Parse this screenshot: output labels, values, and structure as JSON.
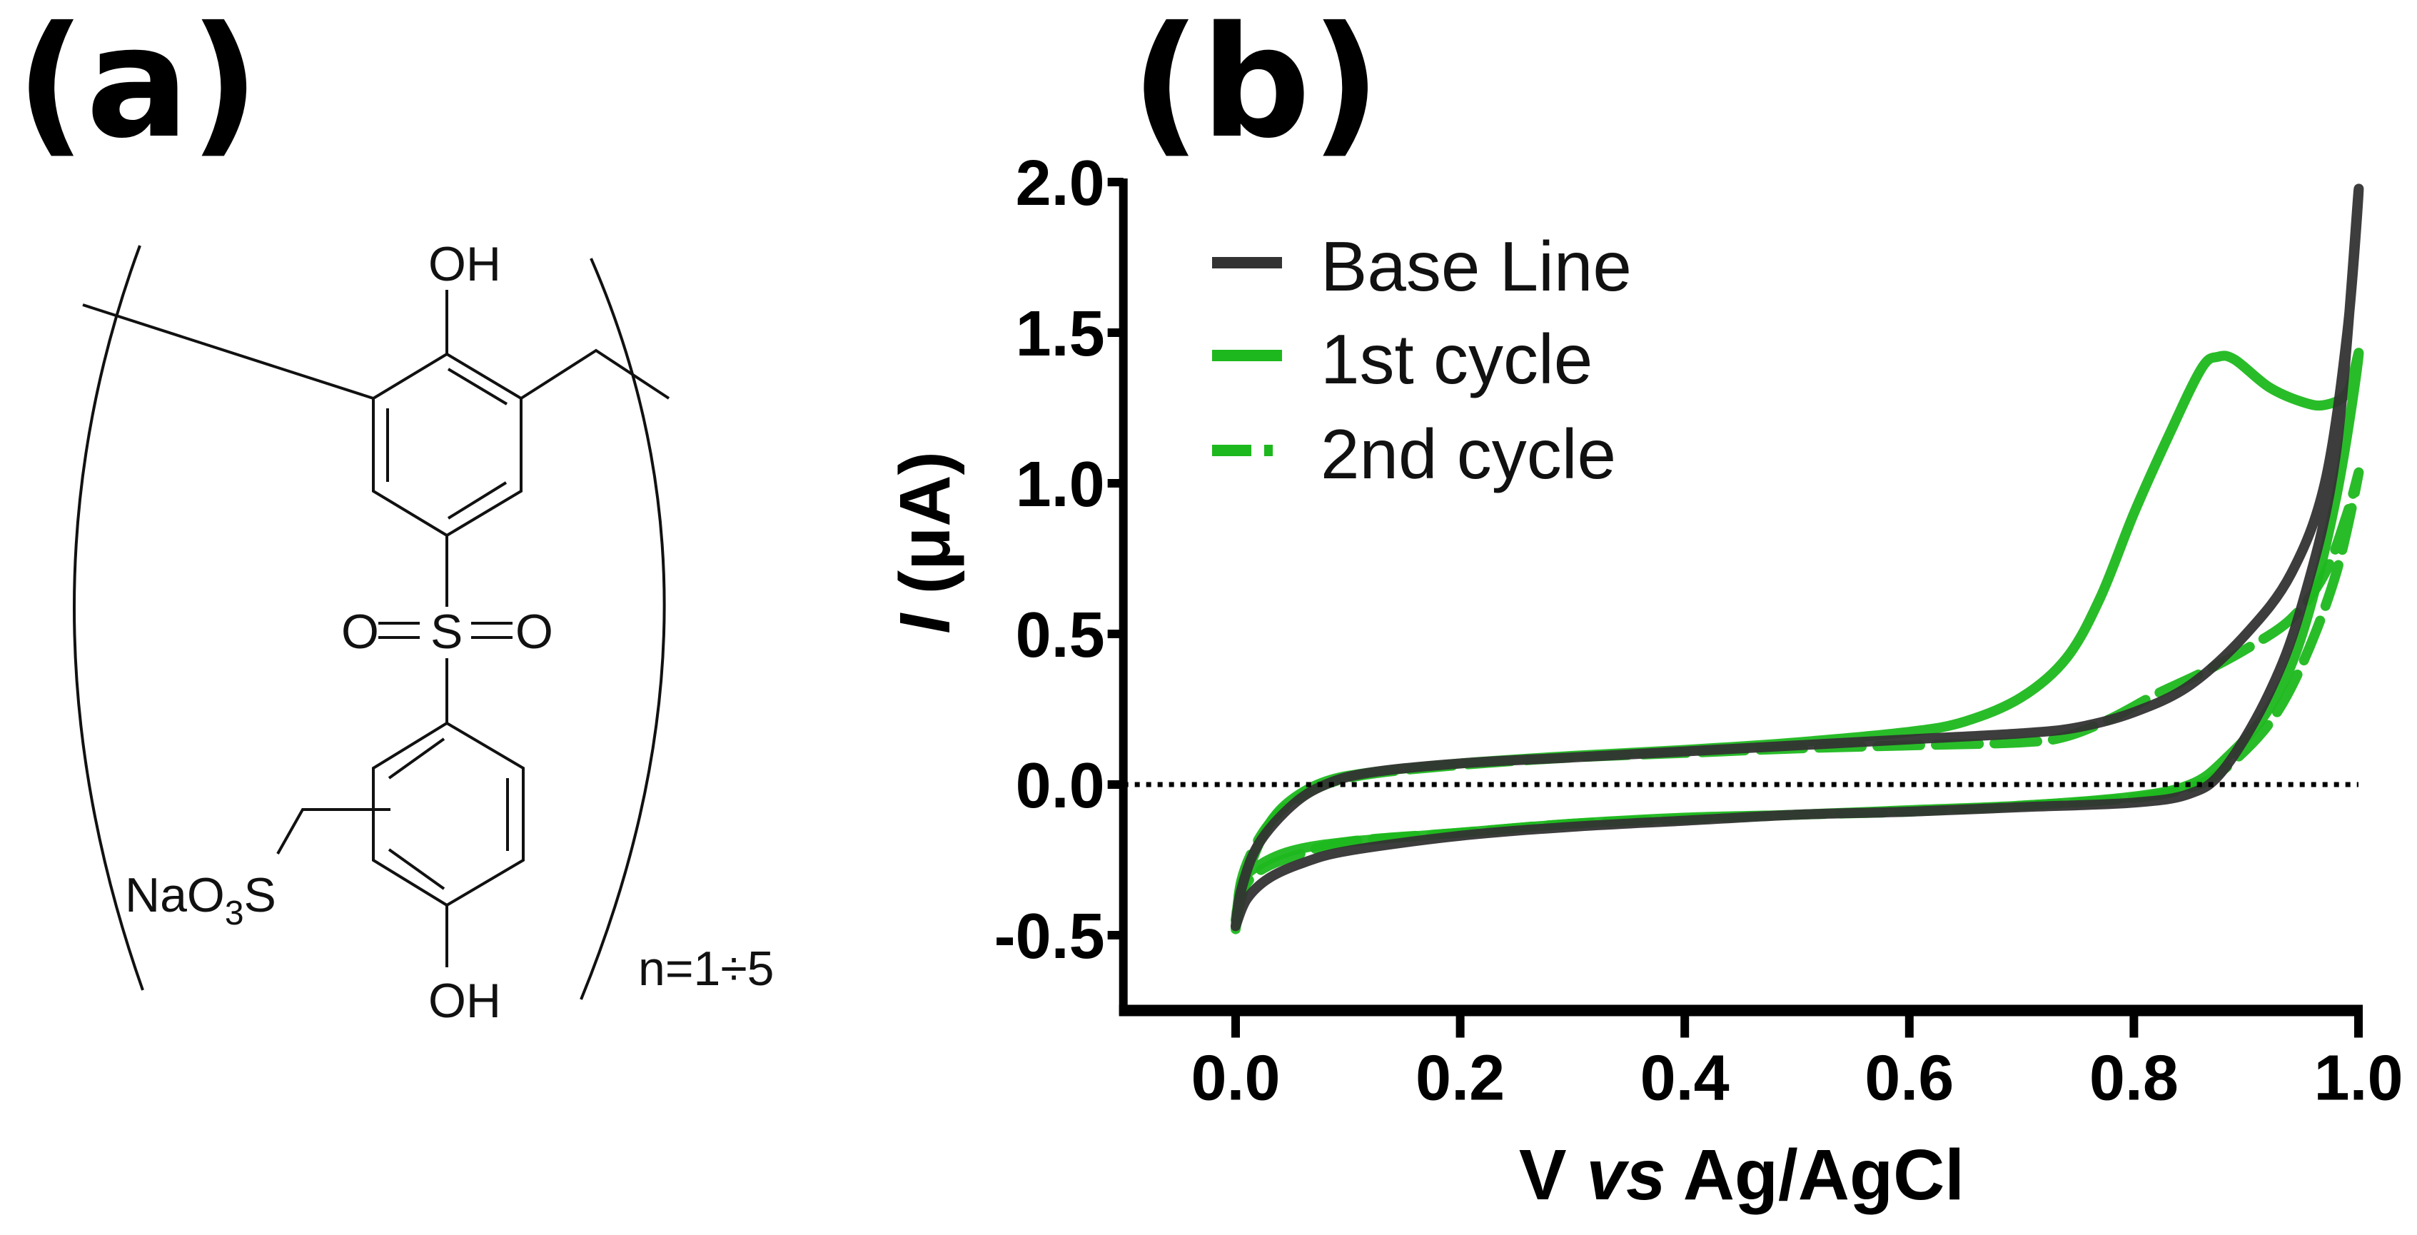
{
  "panel_a": {
    "label": "(a)",
    "structure": {
      "oh_top": "OH",
      "oh_bottom": "OH",
      "sulfonyl_o_left": "O",
      "sulfonyl_s": "S",
      "sulfonyl_o_right": "O",
      "sulfonate": {
        "prefix": "NaO",
        "subscript": "3",
        "suffix": "S"
      },
      "repeat_label": "n=1÷5"
    }
  },
  "panel_b": {
    "label": "(b)"
  },
  "chart_data": {
    "type": "line",
    "title": "",
    "xlabel": {
      "v": "V ",
      "vs": "vs",
      "ref": " Ag/AgCl"
    },
    "ylabel": {
      "i": "I",
      "unit": " (μA)"
    },
    "xlim": [
      -0.1,
      1.0
    ],
    "ylim": [
      -0.75,
      2.0
    ],
    "xticks": [
      "0.0",
      "0.2",
      "0.4",
      "0.6",
      "0.8",
      "1.0"
    ],
    "xtick_values": [
      0,
      0.2,
      0.4,
      0.6,
      0.8,
      1.0
    ],
    "yticks": [
      "2.0",
      "1.5",
      "1.0",
      "0.5",
      "0.0",
      "-0.5"
    ],
    "ytick_values": [
      2.0,
      1.5,
      1.0,
      0.5,
      0.0,
      -0.5
    ],
    "reference_line": {
      "y": 0,
      "style": "dotted"
    },
    "legend_position": "top-left",
    "series": [
      {
        "name": "Base Line",
        "color": "#333333",
        "dash": "solid",
        "points": [
          [
            0,
            -0.47
          ],
          [
            0.01,
            -0.38
          ],
          [
            0.03,
            -0.31
          ],
          [
            0.06,
            -0.26
          ],
          [
            0.1,
            -0.22
          ],
          [
            0.2,
            -0.17
          ],
          [
            0.3,
            -0.14
          ],
          [
            0.4,
            -0.12
          ],
          [
            0.5,
            -0.1
          ],
          [
            0.6,
            -0.09
          ],
          [
            0.7,
            -0.075
          ],
          [
            0.8,
            -0.06
          ],
          [
            0.85,
            -0.03
          ],
          [
            0.88,
            0.05
          ],
          [
            0.92,
            0.3
          ],
          [
            0.95,
            0.6
          ],
          [
            0.98,
            1.1
          ],
          [
            1.0,
            1.97
          ],
          [
            0.99,
            1.5
          ],
          [
            0.97,
            1.0
          ],
          [
            0.94,
            0.7
          ],
          [
            0.9,
            0.5
          ],
          [
            0.85,
            0.33
          ],
          [
            0.8,
            0.24
          ],
          [
            0.75,
            0.19
          ],
          [
            0.7,
            0.17
          ],
          [
            0.6,
            0.15
          ],
          [
            0.5,
            0.13
          ],
          [
            0.4,
            0.11
          ],
          [
            0.3,
            0.09
          ],
          [
            0.2,
            0.07
          ],
          [
            0.12,
            0.04
          ],
          [
            0.08,
            0.0
          ],
          [
            0.05,
            -0.07
          ],
          [
            0.02,
            -0.2
          ],
          [
            0.005,
            -0.35
          ],
          [
            0,
            -0.47
          ]
        ]
      },
      {
        "name": "1st cycle",
        "color": "#1db81d",
        "dash": "solid",
        "points": [
          [
            0,
            -0.48
          ],
          [
            0.005,
            -0.33
          ],
          [
            0.02,
            -0.27
          ],
          [
            0.05,
            -0.22
          ],
          [
            0.1,
            -0.19
          ],
          [
            0.2,
            -0.16
          ],
          [
            0.3,
            -0.13
          ],
          [
            0.4,
            -0.11
          ],
          [
            0.5,
            -0.1
          ],
          [
            0.6,
            -0.085
          ],
          [
            0.7,
            -0.07
          ],
          [
            0.8,
            -0.04
          ],
          [
            0.85,
            0.0
          ],
          [
            0.88,
            0.08
          ],
          [
            0.92,
            0.25
          ],
          [
            0.95,
            0.5
          ],
          [
            0.98,
            0.95
          ],
          [
            1.0,
            1.42
          ],
          [
            0.99,
            1.3
          ],
          [
            0.97,
            1.26
          ],
          [
            0.95,
            1.27
          ],
          [
            0.92,
            1.32
          ],
          [
            0.89,
            1.41
          ],
          [
            0.875,
            1.42
          ],
          [
            0.86,
            1.38
          ],
          [
            0.83,
            1.15
          ],
          [
            0.8,
            0.9
          ],
          [
            0.77,
            0.62
          ],
          [
            0.74,
            0.42
          ],
          [
            0.7,
            0.29
          ],
          [
            0.65,
            0.21
          ],
          [
            0.6,
            0.175
          ],
          [
            0.5,
            0.14
          ],
          [
            0.4,
            0.115
          ],
          [
            0.3,
            0.095
          ],
          [
            0.2,
            0.07
          ],
          [
            0.12,
            0.04
          ],
          [
            0.08,
            0.01
          ],
          [
            0.05,
            -0.05
          ],
          [
            0.03,
            -0.13
          ],
          [
            0.015,
            -0.25
          ],
          [
            0.005,
            -0.38
          ],
          [
            0,
            -0.48
          ]
        ]
      },
      {
        "name": "2nd cycle",
        "color": "#1db81d",
        "dash": "dashed",
        "points": [
          [
            0,
            -0.45
          ],
          [
            0.005,
            -0.36
          ],
          [
            0.02,
            -0.29
          ],
          [
            0.05,
            -0.24
          ],
          [
            0.1,
            -0.19
          ],
          [
            0.2,
            -0.16
          ],
          [
            0.3,
            -0.13
          ],
          [
            0.4,
            -0.115
          ],
          [
            0.5,
            -0.1
          ],
          [
            0.6,
            -0.09
          ],
          [
            0.7,
            -0.07
          ],
          [
            0.8,
            -0.045
          ],
          [
            0.85,
            -0.01
          ],
          [
            0.88,
            0.05
          ],
          [
            0.92,
            0.2
          ],
          [
            0.95,
            0.4
          ],
          [
            0.98,
            0.7
          ],
          [
            1.0,
            1.03
          ],
          [
            0.99,
            0.9
          ],
          [
            0.97,
            0.7
          ],
          [
            0.94,
            0.55
          ],
          [
            0.9,
            0.45
          ],
          [
            0.86,
            0.37
          ],
          [
            0.82,
            0.3
          ],
          [
            0.78,
            0.22
          ],
          [
            0.74,
            0.16
          ],
          [
            0.7,
            0.14
          ],
          [
            0.6,
            0.13
          ],
          [
            0.5,
            0.12
          ],
          [
            0.4,
            0.105
          ],
          [
            0.3,
            0.09
          ],
          [
            0.2,
            0.065
          ],
          [
            0.12,
            0.035
          ],
          [
            0.08,
            0.0
          ],
          [
            0.05,
            -0.06
          ],
          [
            0.03,
            -0.13
          ],
          [
            0.015,
            -0.22
          ],
          [
            0.005,
            -0.32
          ],
          [
            0,
            -0.45
          ]
        ]
      }
    ]
  }
}
